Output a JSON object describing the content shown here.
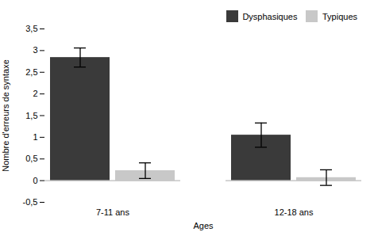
{
  "chart_data": {
    "type": "bar",
    "xlabel": "Ages",
    "ylabel": "Nombre d'erreurs de syntaxe",
    "categories": [
      "7-11 ans",
      "12-18 ans"
    ],
    "series": [
      {
        "name": "Dysphasiques",
        "color": "#3a3a3a",
        "values": [
          2.84,
          1.05
        ],
        "errors": [
          0.22,
          0.28
        ]
      },
      {
        "name": "Typiques",
        "color": "#c8c8c8",
        "values": [
          0.23,
          0.07
        ],
        "errors": [
          0.18,
          0.18
        ]
      }
    ],
    "ylim": [
      -0.5,
      3.5
    ],
    "yticks": [
      {
        "value": -0.5,
        "label": "-0,5"
      },
      0,
      {
        "value": 0.5,
        "label": "0,5"
      },
      1,
      {
        "value": 1.5,
        "label": "1,5"
      },
      2,
      {
        "value": 2.5,
        "label": "2,5"
      },
      3,
      {
        "value": 3.5,
        "label": "3,5"
      }
    ],
    "legend": "upper right"
  }
}
